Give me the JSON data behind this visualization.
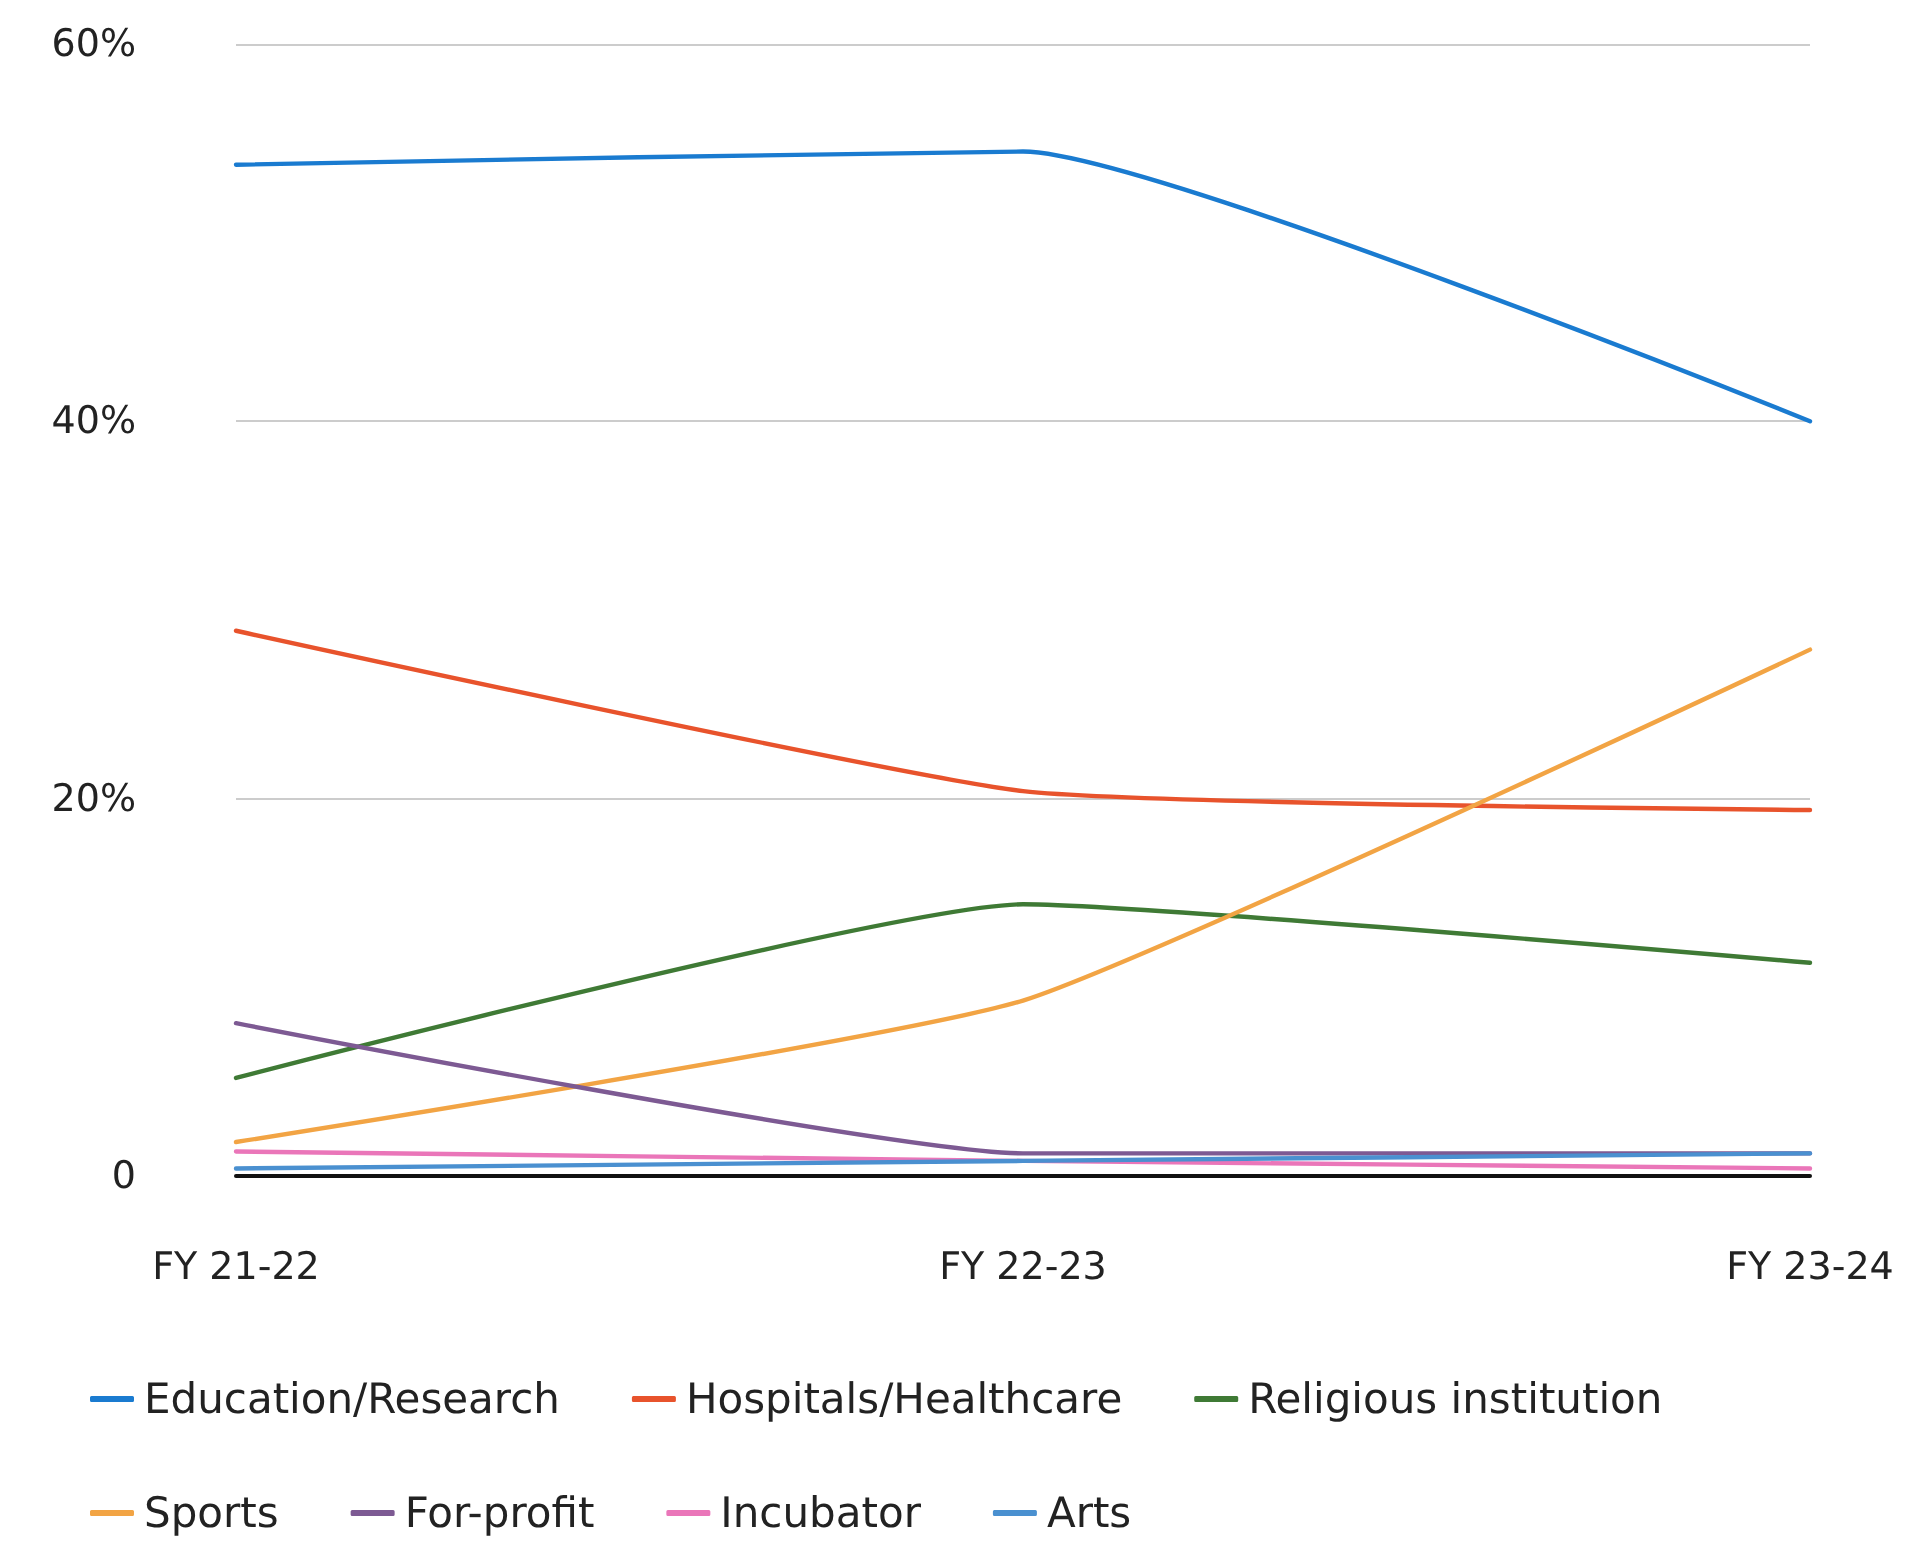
{
  "chart_data": {
    "type": "line",
    "categories": [
      "FY 21-22",
      "FY 22-23",
      "FY 23-24"
    ],
    "series": [
      {
        "name": "Education/Research",
        "color": "#1a7bd0",
        "values": [
          53.6,
          54.3,
          40
        ]
      },
      {
        "name": "Hospitals/Healthcare",
        "color": "#e8532c",
        "values": [
          28.9,
          20.4,
          19.4
        ]
      },
      {
        "name": "Religious institution",
        "color": "#3f7a35",
        "values": [
          5.2,
          14.4,
          11.3
        ]
      },
      {
        "name": "Sports",
        "color": "#f2a444",
        "values": [
          1.8,
          9.3,
          27.9
        ]
      },
      {
        "name": "For-profit",
        "color": "#7d5a93",
        "values": [
          8.1,
          1.2,
          1.2
        ]
      },
      {
        "name": "Incubator",
        "color": "#ea76b9",
        "values": [
          1.3,
          0.8,
          0.4
        ]
      },
      {
        "name": "Arts",
        "color": "#4a90d0",
        "values": [
          0.4,
          0.8,
          1.2
        ]
      }
    ],
    "ylim": [
      0,
      60
    ],
    "yticks": [
      {
        "value": 0,
        "label": "0"
      },
      {
        "value": 20,
        "label": "20%"
      },
      {
        "value": 40,
        "label": "40%"
      },
      {
        "value": 60,
        "label": "60%"
      }
    ],
    "grid": "y",
    "legend": "bottom",
    "marker": "none",
    "line_style": "solid"
  }
}
